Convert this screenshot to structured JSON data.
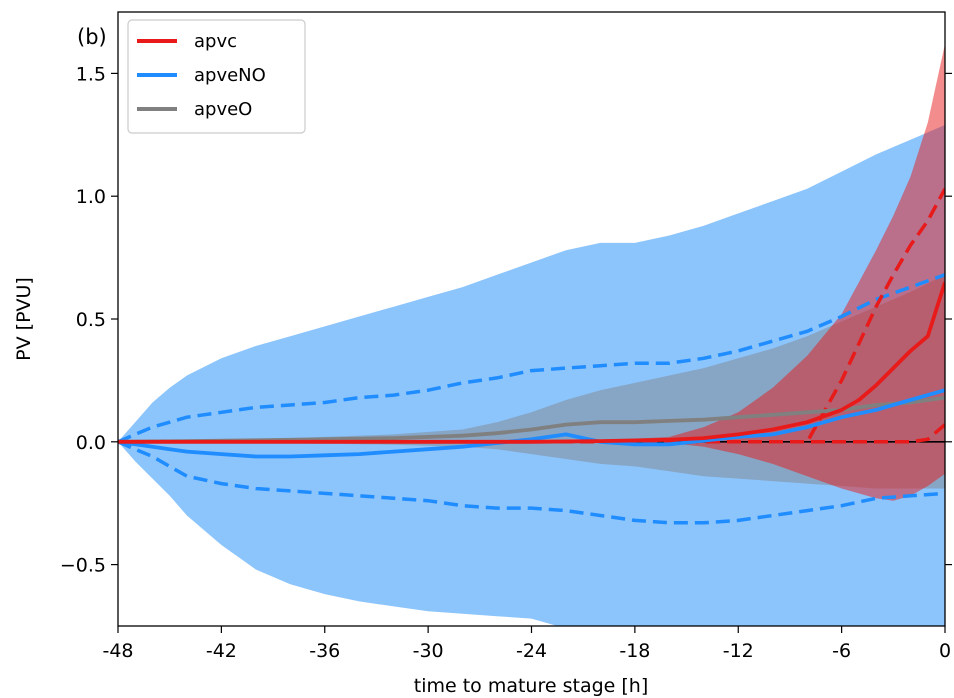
{
  "chart_data": {
    "type": "line",
    "panel_label": "(b)",
    "title": "",
    "xlabel": "time to mature stage [h]",
    "ylabel": "PV [PVU]",
    "xlim": [
      -48,
      0
    ],
    "ylim": [
      -0.75,
      1.75
    ],
    "xticks": [
      -48,
      -42,
      -36,
      -30,
      -24,
      -18,
      -12,
      -6,
      0
    ],
    "xtick_labels": [
      "-48",
      "-42",
      "-36",
      "-30",
      "-24",
      "-18",
      "-12",
      "-6",
      "0"
    ],
    "yticks": [
      -0.5,
      0.0,
      0.5,
      1.0,
      1.5
    ],
    "ytick_labels": [
      "−0.5",
      "0.0",
      "0.5",
      "1.0",
      "1.5"
    ],
    "grid": false,
    "legend_position": "top-left",
    "zero_line": 0,
    "series": [
      {
        "name": "apvc",
        "color": "#e81a1a",
        "band_alpha": 0.5,
        "x": [
          -48,
          -40,
          -32,
          -26,
          -24,
          -20,
          -16,
          -14,
          -12,
          -10,
          -8,
          -6,
          -5,
          -4,
          -3,
          -2,
          -1,
          0
        ],
        "median": [
          0,
          0,
          0,
          0,
          0,
          0.003,
          0.008,
          0.015,
          0.03,
          0.05,
          0.08,
          0.13,
          0.17,
          0.23,
          0.3,
          0.37,
          0.43,
          0.65
        ],
        "upper": [
          0,
          0,
          0,
          0,
          0,
          0.005,
          0.02,
          0.06,
          0.12,
          0.22,
          0.35,
          0.52,
          0.65,
          0.78,
          0.92,
          1.08,
          1.3,
          1.62
        ],
        "lower": [
          0,
          0,
          0,
          0,
          0,
          0,
          -0.005,
          -0.02,
          -0.05,
          -0.09,
          -0.14,
          -0.19,
          -0.21,
          -0.23,
          -0.24,
          -0.22,
          -0.18,
          -0.13
        ],
        "p_upper_dashed": [
          0,
          0,
          0,
          0,
          0,
          0,
          0,
          0,
          0,
          0,
          0,
          0.25,
          0.4,
          0.55,
          0.68,
          0.8,
          0.9,
          1.03
        ],
        "p_lower_dashed": [
          0,
          0,
          0,
          0,
          0,
          0,
          0,
          0,
          0,
          0,
          0,
          0,
          0,
          0,
          0,
          0,
          0.01,
          0.07
        ]
      },
      {
        "name": "apveNO",
        "color": "#1f8cff",
        "band_color": "#7fbefc",
        "band_alpha": 0.9,
        "x": [
          -48,
          -47,
          -46,
          -45,
          -44,
          -42,
          -40,
          -38,
          -36,
          -34,
          -32,
          -30,
          -28,
          -26,
          -24,
          -22,
          -20,
          -18,
          -16,
          -14,
          -12,
          -10,
          -8,
          -6,
          -4,
          -2,
          0
        ],
        "median": [
          0,
          -0.01,
          -0.02,
          -0.03,
          -0.04,
          -0.05,
          -0.06,
          -0.06,
          -0.055,
          -0.05,
          -0.04,
          -0.03,
          -0.02,
          -0.005,
          0.01,
          0.03,
          0.0,
          -0.01,
          -0.01,
          0.005,
          0.02,
          0.03,
          0.06,
          0.1,
          0.13,
          0.17,
          0.21
        ],
        "p_upper_dashed": [
          0,
          0.03,
          0.06,
          0.08,
          0.1,
          0.12,
          0.14,
          0.15,
          0.16,
          0.18,
          0.19,
          0.21,
          0.24,
          0.26,
          0.29,
          0.3,
          0.31,
          0.32,
          0.32,
          0.34,
          0.37,
          0.41,
          0.45,
          0.51,
          0.58,
          0.63,
          0.68
        ],
        "p_lower_dashed": [
          0,
          -0.03,
          -0.06,
          -0.1,
          -0.14,
          -0.17,
          -0.19,
          -0.2,
          -0.21,
          -0.22,
          -0.23,
          -0.24,
          -0.26,
          -0.27,
          -0.27,
          -0.28,
          -0.3,
          -0.32,
          -0.33,
          -0.33,
          -0.32,
          -0.3,
          -0.28,
          -0.26,
          -0.23,
          -0.22,
          -0.21
        ],
        "upper": [
          0,
          0.08,
          0.16,
          0.22,
          0.27,
          0.34,
          0.39,
          0.43,
          0.47,
          0.51,
          0.55,
          0.59,
          0.63,
          0.68,
          0.73,
          0.78,
          0.81,
          0.81,
          0.84,
          0.88,
          0.93,
          0.98,
          1.03,
          1.1,
          1.17,
          1.23,
          1.29
        ],
        "lower": [
          0,
          -0.08,
          -0.15,
          -0.22,
          -0.3,
          -0.42,
          -0.52,
          -0.58,
          -0.62,
          -0.65,
          -0.67,
          -0.69,
          -0.7,
          -0.71,
          -0.72,
          -0.76,
          -0.84,
          -0.88,
          -0.92,
          -0.96,
          -1.0,
          -1.03,
          -1.06,
          -1.08,
          -1.1,
          -1.12,
          -1.14
        ]
      },
      {
        "name": "apveO",
        "color": "#808080",
        "band_color": "#808080",
        "band_alpha": 0.45,
        "x": [
          -48,
          -44,
          -40,
          -36,
          -32,
          -28,
          -26,
          -24,
          -22,
          -20,
          -18,
          -16,
          -14,
          -12,
          -10,
          -8,
          -6,
          -4,
          -2,
          0
        ],
        "median": [
          0,
          0.003,
          0.006,
          0.01,
          0.015,
          0.025,
          0.035,
          0.05,
          0.07,
          0.08,
          0.08,
          0.085,
          0.09,
          0.1,
          0.11,
          0.12,
          0.13,
          0.15,
          0.16,
          0.18
        ],
        "upper": [
          0,
          0.005,
          0.01,
          0.02,
          0.03,
          0.05,
          0.08,
          0.12,
          0.17,
          0.21,
          0.24,
          0.27,
          0.3,
          0.34,
          0.38,
          0.43,
          0.49,
          0.55,
          0.61,
          0.68
        ],
        "lower": [
          0,
          -0.002,
          -0.005,
          -0.008,
          -0.012,
          -0.02,
          -0.03,
          -0.05,
          -0.07,
          -0.09,
          -0.1,
          -0.12,
          -0.14,
          -0.15,
          -0.16,
          -0.17,
          -0.18,
          -0.19,
          -0.19,
          -0.19
        ]
      }
    ]
  }
}
